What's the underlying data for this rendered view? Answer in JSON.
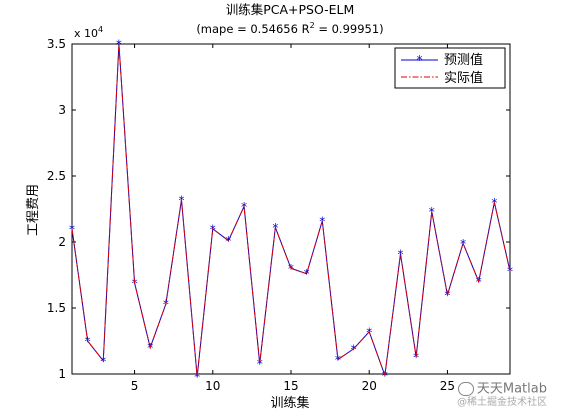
{
  "chart_data": {
    "type": "line",
    "title": "训练集PCA+PSO-ELM",
    "subtitle_prefix": "(mape = 0.54656  R",
    "subtitle_sup": "2",
    "subtitle_suffix": " = 0.99951)",
    "xlabel": "训练集",
    "ylabel": "工程费用",
    "exponent_base": "x 10",
    "exponent_power": "4",
    "xlim": [
      1,
      29
    ],
    "ylim": [
      10000,
      35000
    ],
    "x_ticks": [
      5,
      10,
      15,
      20,
      25
    ],
    "x_tick_labels": [
      "5",
      "10",
      "15",
      "20",
      "25"
    ],
    "y_ticks": [
      10000,
      15000,
      20000,
      25000,
      30000,
      35000
    ],
    "y_tick_labels": [
      "1",
      "1.5",
      "2",
      "2.5",
      "3",
      "3.5"
    ],
    "grid": false,
    "legend_position": "top-right",
    "x": [
      1,
      2,
      3,
      4,
      5,
      6,
      7,
      8,
      9,
      10,
      11,
      12,
      13,
      14,
      15,
      16,
      17,
      18,
      19,
      20,
      21,
      22,
      23,
      24,
      25,
      26,
      27,
      28,
      29
    ],
    "series": [
      {
        "name": "预测值",
        "color": "#0000cc",
        "style": "solid-star",
        "values": [
          21000,
          12500,
          11000,
          35000,
          16900,
          12000,
          15300,
          23200,
          9800,
          21000,
          20100,
          22700,
          10800,
          21100,
          18000,
          17600,
          21600,
          11100,
          11900,
          13200,
          9900,
          19100,
          11300,
          22300,
          16000,
          19900,
          17000,
          23000,
          17800
        ]
      },
      {
        "name": "实际值",
        "color": "#e00000",
        "style": "dashdot",
        "values": [
          21000,
          12500,
          11000,
          35000,
          16900,
          12000,
          15300,
          23200,
          9800,
          21000,
          20100,
          22700,
          10800,
          21100,
          18000,
          17600,
          21600,
          11100,
          11900,
          13200,
          9900,
          19100,
          11300,
          22300,
          16000,
          19900,
          17000,
          23000,
          17800
        ]
      }
    ]
  },
  "watermark": {
    "line1": "天天Matlab",
    "line2": "@稀土掘金技术社区"
  }
}
